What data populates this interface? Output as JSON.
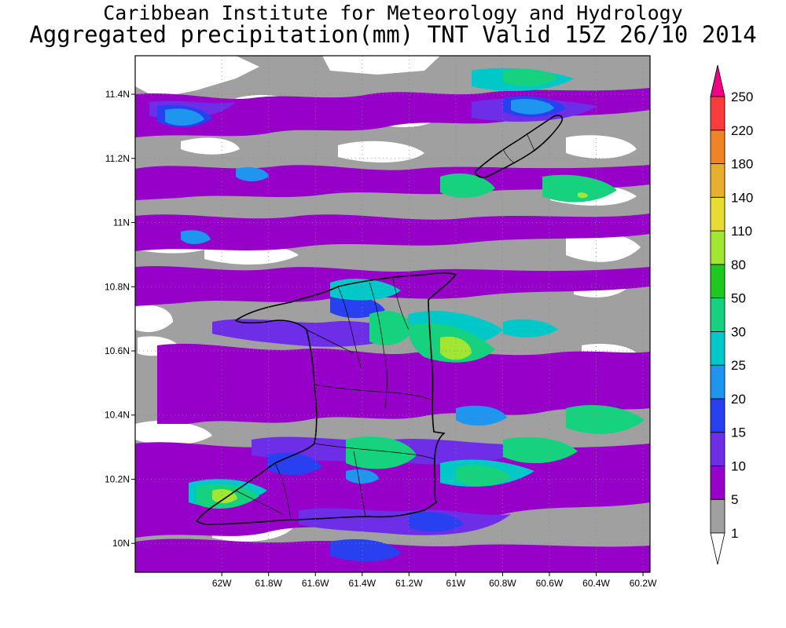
{
  "header": {
    "title": "Caribbean Institute for Meteorology and Hydrology",
    "subtitle": "Aggregated precipitation(mm) TNT Valid 15Z 26/10 2014"
  },
  "map": {
    "lon_range": [
      -62.37,
      -60.17
    ],
    "lat_range": [
      9.91,
      11.52
    ],
    "x_ticks": [
      {
        "value": -62.0,
        "label": "62W"
      },
      {
        "value": -61.8,
        "label": "61.8W"
      },
      {
        "value": -61.6,
        "label": "61.6W"
      },
      {
        "value": -61.4,
        "label": "61.4W"
      },
      {
        "value": -61.2,
        "label": "61.2W"
      },
      {
        "value": -61.0,
        "label": "61W"
      },
      {
        "value": -60.8,
        "label": "60.8W"
      },
      {
        "value": -60.6,
        "label": "60.6W"
      },
      {
        "value": -60.4,
        "label": "60.4W"
      },
      {
        "value": -60.2,
        "label": "60.2W"
      }
    ],
    "y_ticks": [
      {
        "value": 10.0,
        "label": "10N"
      },
      {
        "value": 10.2,
        "label": "10.2N"
      },
      {
        "value": 10.4,
        "label": "10.4N"
      },
      {
        "value": 10.6,
        "label": "10.6N"
      },
      {
        "value": 10.8,
        "label": "10.8N"
      },
      {
        "value": 11.0,
        "label": "11N"
      },
      {
        "value": 11.2,
        "label": "11.2N"
      },
      {
        "value": 11.4,
        "label": "11.4N"
      }
    ],
    "grid": "dotted",
    "background_color": "#9f9f9f"
  },
  "legend": {
    "levels": [
      {
        "label": "1",
        "color": "#ffffff"
      },
      {
        "label": "5",
        "color": "#a0a0a0"
      },
      {
        "label": "10",
        "color": "#9600c8"
      },
      {
        "label": "15",
        "color": "#6e2ee8"
      },
      {
        "label": "20",
        "color": "#2840f0"
      },
      {
        "label": "25",
        "color": "#1e96f0"
      },
      {
        "label": "30",
        "color": "#00c8c8"
      },
      {
        "label": "50",
        "color": "#16d27e"
      },
      {
        "label": "80",
        "color": "#1ec81e"
      },
      {
        "label": "110",
        "color": "#a0e632"
      },
      {
        "label": "140",
        "color": "#e6dc32"
      },
      {
        "label": "180",
        "color": "#e6af2d"
      },
      {
        "label": "220",
        "color": "#f08228"
      },
      {
        "label": "250",
        "color": "#fa3c3c"
      }
    ],
    "top_arrow_color": "#f00082",
    "bottom_arrow_color": "#ffffff"
  }
}
